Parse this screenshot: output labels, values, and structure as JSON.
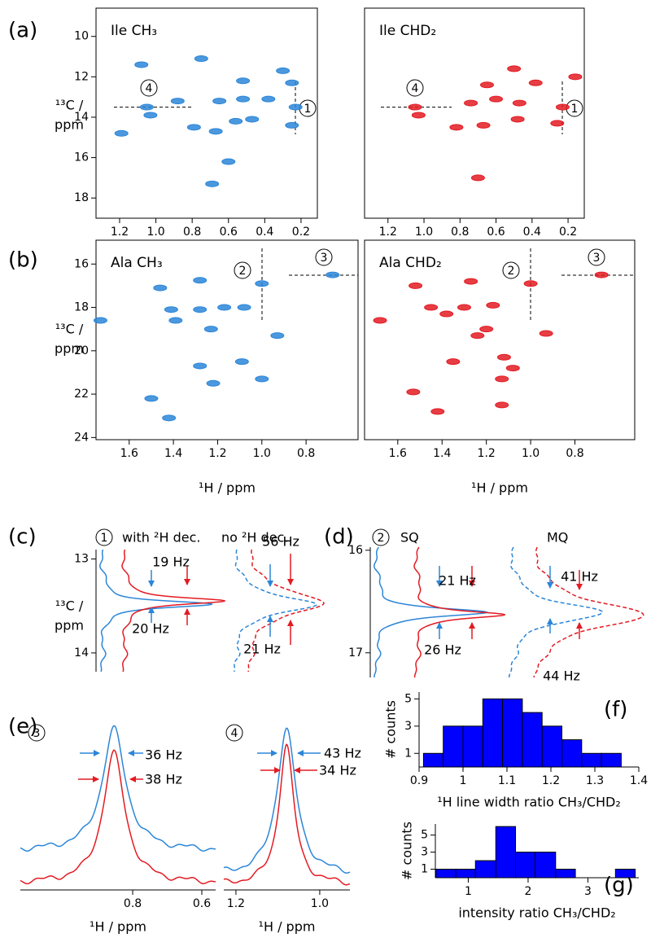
{
  "panel_labels": [
    "(a)",
    "(b)",
    "(c)",
    "(d)",
    "(e)",
    "(f)",
    "(g)"
  ],
  "chart_data": [
    {
      "type": "scatter",
      "title": "Ile CH₃",
      "color": "#2c86d8",
      "xlim": [
        1.33,
        0.11
      ],
      "ylim": [
        19.0,
        8.6
      ],
      "xticks": [
        1.2,
        {
          "value": 1,
          "label": "1.0"
        },
        0.8,
        0.6,
        0.4,
        0.2
      ],
      "yticks": [
        10,
        12,
        14,
        16,
        18
      ],
      "ylabel": [
        "¹³C /",
        "ppm"
      ],
      "annotations": [
        "4",
        "1"
      ],
      "x": [
        0.75,
        0.3,
        0.25,
        0.52,
        0.65,
        0.52,
        0.38,
        0.88,
        1.05,
        1.03,
        0.23,
        0.79,
        0.56,
        0.47,
        0.25,
        1.19,
        0.67,
        0.6,
        0.69,
        1.08
      ],
      "y": [
        11.1,
        11.7,
        12.3,
        12.2,
        13.2,
        13.1,
        13.1,
        13.2,
        13.5,
        13.9,
        13.5,
        14.5,
        14.2,
        14.1,
        14.4,
        14.8,
        14.7,
        16.2,
        17.3,
        11.4
      ]
    },
    {
      "type": "scatter",
      "title": "Ile CHD₂",
      "color": "#e31b23",
      "xlim": [
        1.33,
        0.11
      ],
      "ylim": [
        19.0,
        8.6
      ],
      "xticks": [
        1.2,
        {
          "value": 1,
          "label": "1.0"
        },
        0.8,
        0.6,
        0.4,
        0.2
      ],
      "annotations": [
        "4",
        "1"
      ],
      "x": [
        0.5,
        0.38,
        0.16,
        0.65,
        0.74,
        0.6,
        0.47,
        1.05,
        1.03,
        0.23,
        0.82,
        0.67,
        0.48,
        0.26,
        0.7
      ],
      "y": [
        11.6,
        12.3,
        12.0,
        12.4,
        13.3,
        13.1,
        13.3,
        13.5,
        13.9,
        13.5,
        14.5,
        14.4,
        14.1,
        14.3,
        17.0
      ]
    },
    {
      "type": "scatter",
      "title": "Ala CH₃",
      "color": "#2c86d8",
      "xlim": [
        1.75,
        0.565
      ],
      "ylim": [
        24.1,
        14.9
      ],
      "xticks": [
        1.6,
        1.4,
        1.2,
        {
          "value": 1,
          "label": "1.0"
        },
        0.8
      ],
      "yticks": [
        16,
        18,
        20,
        22,
        24
      ],
      "xlabel": "¹H / ppm",
      "ylabel": [
        "¹³C /",
        "ppm"
      ],
      "annotations": [
        "2",
        "3"
      ],
      "x": [
        1.73,
        1.46,
        1.28,
        1.28,
        1.17,
        1.0,
        1.08,
        1.41,
        1.23,
        1.39,
        0.93,
        1.09,
        1.0,
        1.28,
        1.5,
        1.42,
        1.22,
        0.68
      ],
      "y": [
        18.6,
        17.1,
        16.75,
        18.1,
        18.0,
        16.9,
        18.0,
        18.1,
        19.0,
        18.6,
        19.3,
        20.5,
        21.3,
        20.7,
        22.2,
        23.1,
        21.5,
        16.5
      ]
    },
    {
      "type": "scatter",
      "title": "Ala CHD₂",
      "color": "#e31b23",
      "xlim": [
        1.75,
        0.53
      ],
      "ylim": [
        24.1,
        14.9
      ],
      "xticks": [
        1.6,
        1.4,
        1.2,
        {
          "value": 1,
          "label": "1.0"
        },
        0.8
      ],
      "xlabel": "¹H / ppm",
      "annotations": [
        "2",
        "3"
      ],
      "x": [
        1.68,
        1.52,
        1.27,
        1.45,
        1.3,
        1.17,
        1.0,
        1.38,
        1.24,
        0.93,
        1.12,
        1.08,
        1.35,
        1.13,
        1.53,
        1.42,
        1.13,
        1.2,
        0.68
      ],
      "y": [
        18.6,
        17.0,
        16.8,
        18.0,
        18.0,
        17.9,
        16.9,
        18.3,
        19.3,
        19.2,
        20.3,
        20.8,
        20.5,
        21.3,
        21.9,
        22.8,
        22.5,
        19.0,
        16.5
      ]
    },
    {
      "type": "spectrum",
      "ylim": [
        14.2,
        12.9
      ],
      "yticks": [
        13,
        14
      ],
      "ylabel": [
        "¹³C /",
        "ppm"
      ],
      "annotations": [
        "1",
        "with ²H dec.",
        "no ²H dec.",
        "19 Hz",
        "56 Hz",
        "20 Hz",
        "21 Hz"
      ]
    },
    {
      "type": "spectrum",
      "ylim": [
        17.24,
        15.97
      ],
      "yticks": [
        16,
        17
      ],
      "annotations": [
        "2",
        "SQ",
        "MQ",
        "21 Hz",
        "26 Hz",
        "41 Hz",
        "44 Hz"
      ]
    },
    {
      "type": "spectrum",
      "xlim": [
        1.125,
        0.56
      ],
      "xticks": [
        0.8,
        0.6
      ],
      "xlabel": "¹H / ppm",
      "annotations": [
        "3",
        "36 Hz",
        "38 Hz"
      ]
    },
    {
      "type": "spectrum",
      "xlim": [
        1.229,
        0.928
      ],
      "xticks": [
        1.2,
        {
          "value": 1,
          "label": "1.0"
        }
      ],
      "xlabel": "¹H / ppm",
      "annotations": [
        "4",
        "43 Hz",
        "34 Hz"
      ]
    },
    {
      "type": "histogram",
      "color": "#0000ff",
      "bins": [
        0.91,
        0.955,
        1.0,
        1.045,
        1.09,
        1.135,
        1.18,
        1.225,
        1.27,
        1.315,
        1.36
      ],
      "values": [
        1,
        3,
        3,
        5,
        5,
        4,
        3,
        2,
        1,
        1
      ],
      "xlim": [
        0.9,
        1.4
      ],
      "ylim": [
        0,
        5.5
      ],
      "xticks": [
        0.9,
        1,
        1.1,
        1.2,
        1.3,
        1.4
      ],
      "yticks": [
        1,
        3,
        5
      ],
      "xlabel": "¹H line width ratio CH₃/CHD₂",
      "ylabel": "# counts"
    },
    {
      "type": "histogram",
      "color": "#0000ff",
      "bins": [
        0.46,
        0.79,
        1.12,
        1.46,
        1.79,
        2.12,
        2.46,
        2.79,
        3.12,
        3.46,
        3.79
      ],
      "values": [
        1,
        1,
        2,
        6,
        3,
        3,
        1,
        0,
        0,
        1
      ],
      "xlim": [
        0.45,
        3.85
      ],
      "ylim": [
        0,
        6.3
      ],
      "xticks": [
        1,
        2,
        3
      ],
      "yticks": [
        1,
        3,
        5
      ],
      "xlabel": "intensity ratio CH₃/CHD₂",
      "ylabel": "# counts"
    }
  ]
}
